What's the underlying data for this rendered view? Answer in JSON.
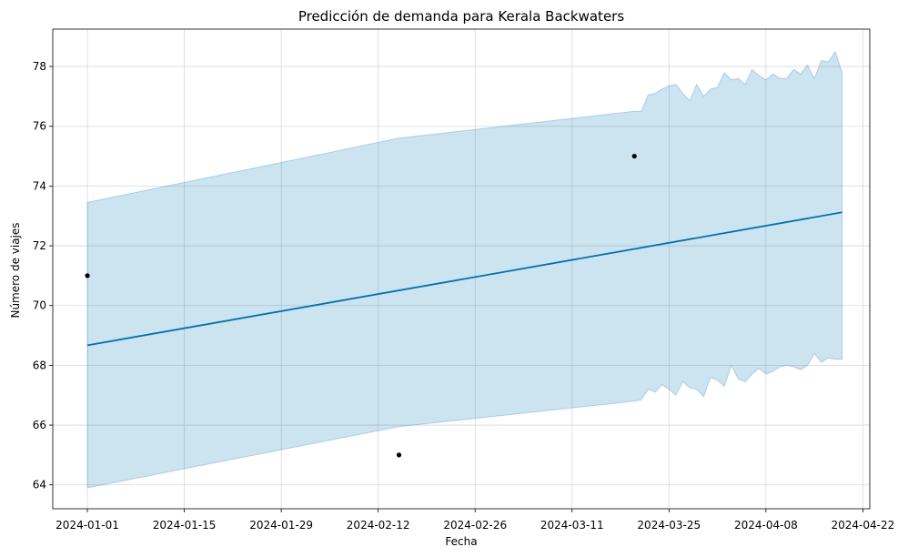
{
  "chart_data": {
    "type": "line",
    "title": "Predicción de demanda para Kerala Backwaters",
    "xlabel": "Fecha",
    "ylabel": "Número de viajes",
    "xlim": [
      "2023-12-27",
      "2024-04-23"
    ],
    "ylim": [
      63.2,
      79.25
    ],
    "grid": true,
    "x_ticks": [
      "2024-01-01",
      "2024-01-15",
      "2024-01-29",
      "2024-02-12",
      "2024-02-26",
      "2024-03-11",
      "2024-03-25",
      "2024-04-08",
      "2024-04-22"
    ],
    "y_ticks": [
      64,
      66,
      68,
      70,
      72,
      74,
      76,
      78
    ],
    "colors": {
      "forecast": "#0072B2",
      "interval": "#0072B2",
      "observed": "#000000",
      "grid": "#d9d9d9"
    },
    "series": [
      {
        "kind": "observed-points",
        "x": [
          "2024-01-01",
          "2024-02-15",
          "2024-03-20"
        ],
        "y": [
          71.0,
          65.0,
          75.0
        ]
      },
      {
        "kind": "forecast-line",
        "x": [
          "2024-01-01",
          "2024-04-19"
        ],
        "y": [
          68.67,
          73.12
        ]
      },
      {
        "kind": "uncertainty-band",
        "x": [
          "2024-01-01",
          "2024-02-15",
          "2024-03-20",
          "2024-03-21",
          "2024-03-22",
          "2024-03-23",
          "2024-03-24",
          "2024-03-25",
          "2024-03-26",
          "2024-03-27",
          "2024-03-28",
          "2024-03-29",
          "2024-03-30",
          "2024-03-31",
          "2024-04-01",
          "2024-04-02",
          "2024-04-03",
          "2024-04-04",
          "2024-04-05",
          "2024-04-06",
          "2024-04-07",
          "2024-04-08",
          "2024-04-09",
          "2024-04-10",
          "2024-04-11",
          "2024-04-12",
          "2024-04-13",
          "2024-04-14",
          "2024-04-15",
          "2024-04-16",
          "2024-04-17",
          "2024-04-18",
          "2024-04-19"
        ],
        "upper": [
          73.45,
          75.6,
          76.5,
          76.5,
          77.05,
          77.1,
          77.25,
          77.35,
          77.4,
          77.1,
          76.85,
          77.4,
          77.0,
          77.25,
          77.3,
          77.8,
          77.55,
          77.6,
          77.4,
          77.9,
          77.7,
          77.55,
          77.75,
          77.6,
          77.6,
          77.9,
          77.75,
          78.05,
          77.6,
          78.2,
          78.15,
          78.5,
          77.8
        ],
        "lower": [
          63.9,
          65.95,
          66.8,
          66.85,
          67.2,
          67.1,
          67.35,
          67.2,
          67.0,
          67.45,
          67.25,
          67.2,
          66.95,
          67.6,
          67.5,
          67.3,
          68.0,
          67.55,
          67.45,
          67.7,
          67.9,
          67.7,
          67.8,
          67.95,
          68.0,
          67.95,
          67.85,
          68.0,
          68.4,
          68.1,
          68.25,
          68.2,
          68.2
        ]
      }
    ]
  }
}
